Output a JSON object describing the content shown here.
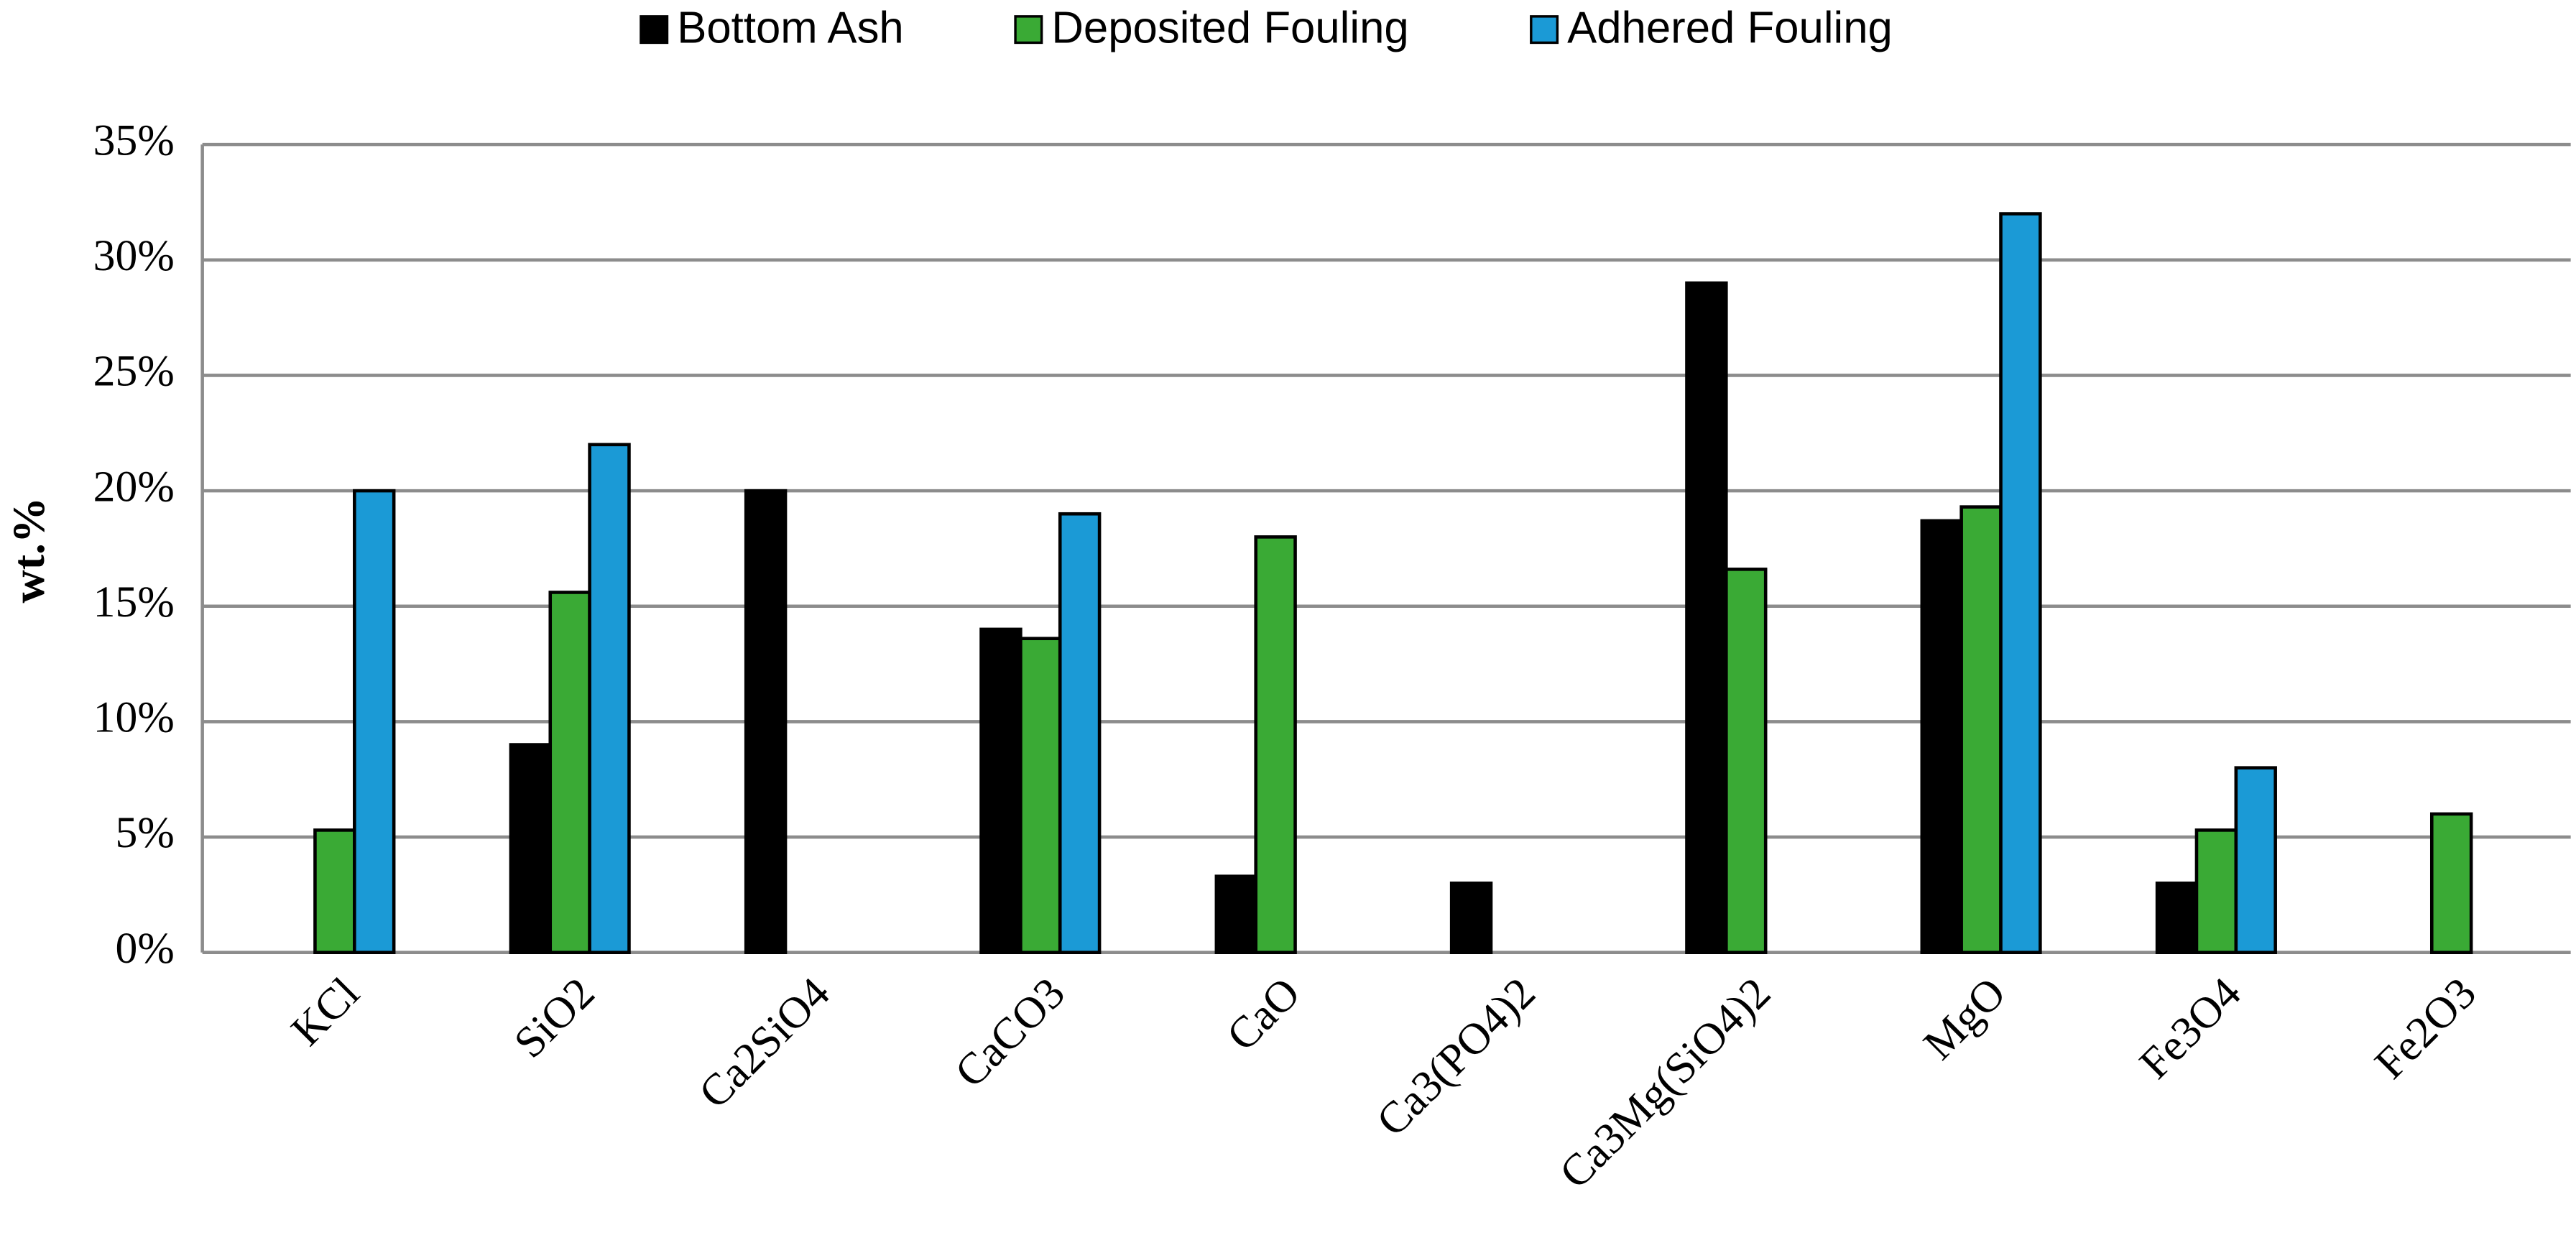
{
  "chart_data": {
    "type": "bar",
    "y_label": "wt.%",
    "categories": [
      "KCl",
      "SiO2",
      "Ca2SiO4",
      "CaCO3",
      "CaO",
      "Ca3(PO4)2",
      "Ca3Mg(SiO4)2",
      "MgO",
      "Fe3O4",
      "Fe2O3"
    ],
    "series": [
      {
        "name": "Bottom Ash",
        "color": "#000000",
        "values": [
          null,
          9,
          20,
          14,
          3.3,
          3,
          29,
          18.7,
          3,
          null
        ]
      },
      {
        "name": "Deposited Fouling",
        "color": "#3aaa35",
        "values": [
          5.3,
          15.6,
          null,
          13.6,
          18,
          null,
          16.6,
          19.3,
          5.3,
          6
        ]
      },
      {
        "name": "Adhered Fouling",
        "color": "#1b9ad6",
        "values": [
          20,
          22,
          null,
          19,
          null,
          null,
          null,
          32,
          8,
          null
        ]
      }
    ],
    "ylim": [
      0,
      35
    ],
    "yticks": [
      {
        "value": 0,
        "label": "0%"
      },
      {
        "value": 5,
        "label": "5%"
      },
      {
        "value": 10,
        "label": "10%"
      },
      {
        "value": 15,
        "label": "15%"
      },
      {
        "value": 20,
        "label": "20%"
      },
      {
        "value": 25,
        "label": "25%"
      },
      {
        "value": 30,
        "label": "30%"
      },
      {
        "value": 35,
        "label": "35%"
      }
    ],
    "grid": true,
    "legend": "top"
  }
}
